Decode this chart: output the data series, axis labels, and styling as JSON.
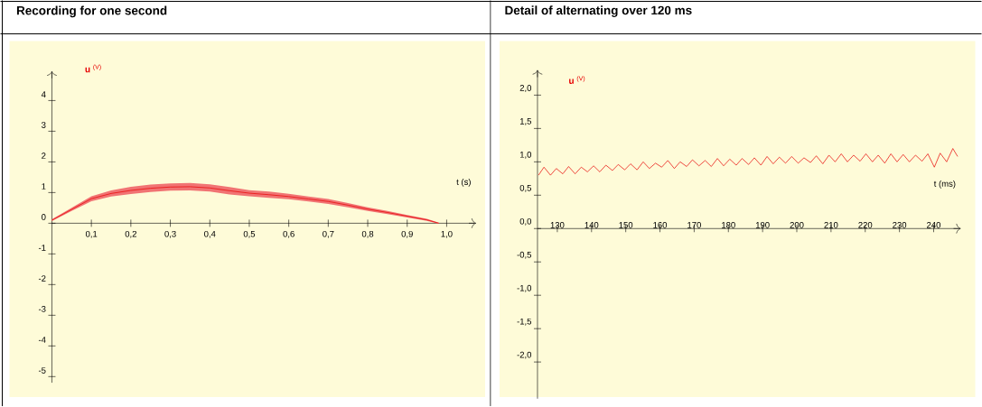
{
  "chart_data": [
    {
      "type": "line",
      "title": "Recording for one second",
      "xlabel": "t (s)",
      "ylabel": "**u** $^{(V)}$",
      "xlim": [
        0,
        1.07
      ],
      "ylim": [
        -5.2,
        4.9
      ],
      "xticks": [
        {
          "value": 0.1,
          "label": "0,1"
        },
        {
          "value": 0.2,
          "label": "0,2"
        },
        {
          "value": 0.3,
          "label": "0,3"
        },
        {
          "value": 0.4,
          "label": "0,4"
        },
        {
          "value": 0.5,
          "label": "0,5"
        },
        {
          "value": 0.6,
          "label": "0,6"
        },
        {
          "value": 0.7,
          "label": "0,7"
        },
        {
          "value": 0.8,
          "label": "0,8"
        },
        {
          "value": 0.9,
          "label": "0,9"
        },
        {
          "value": 1.0,
          "label": "1,0"
        }
      ],
      "yticks": [
        -5,
        -4,
        -3,
        -2,
        -1,
        0,
        1,
        2,
        3,
        4
      ],
      "x": [
        0,
        0.05,
        0.1,
        0.15,
        0.2,
        0.25,
        0.3,
        0.35,
        0.4,
        0.45,
        0.5,
        0.55,
        0.6,
        0.65,
        0.7,
        0.75,
        0.8,
        0.85,
        0.9,
        0.95,
        0.98
      ],
      "series": [
        {
          "color": "#e60000",
          "values": [
            0.1,
            0.45,
            0.8,
            0.97,
            1.07,
            1.14,
            1.18,
            1.19,
            1.15,
            1.06,
            0.98,
            0.93,
            0.87,
            0.79,
            0.71,
            0.59,
            0.46,
            0.35,
            0.23,
            0.11,
            0.0
          ],
          "upper": [
            0.13,
            0.5,
            0.88,
            1.07,
            1.19,
            1.26,
            1.3,
            1.31,
            1.27,
            1.18,
            1.08,
            1.03,
            0.96,
            0.87,
            0.79,
            0.66,
            0.52,
            0.4,
            0.27,
            0.14,
            0.02
          ],
          "lower": [
            0.07,
            0.4,
            0.72,
            0.87,
            0.95,
            1.02,
            1.06,
            1.07,
            1.03,
            0.94,
            0.88,
            0.83,
            0.78,
            0.71,
            0.63,
            0.52,
            0.4,
            0.3,
            0.19,
            0.08,
            -0.02
          ]
        }
      ]
    },
    {
      "type": "line",
      "title": "Detail of alternating over 120 ms",
      "xlabel": "t (ms)",
      "ylabel": "**u** $^{(V)}$",
      "xlim": [
        124.2,
        247.4
      ],
      "ylim": [
        -2.55,
        2.35
      ],
      "xticks": [
        130,
        140,
        150,
        160,
        170,
        180,
        190,
        200,
        210,
        220,
        230,
        240
      ],
      "yticks": [
        {
          "value": -2,
          "label": "-2,0"
        },
        {
          "value": -1.5,
          "label": "-1,5"
        },
        {
          "value": -1,
          "label": "-1,0"
        },
        {
          "value": -0.5,
          "label": "-0,5"
        },
        {
          "value": 0,
          "label": "0,0"
        },
        {
          "value": 0.5,
          "label": "0,5"
        },
        {
          "value": 1,
          "label": "1,0"
        },
        {
          "value": 1.5,
          "label": "1,5"
        },
        {
          "value": 2,
          "label": "2,0"
        }
      ],
      "x": [
        124.5,
        126.1,
        128.0,
        129.7,
        131.6,
        133.3,
        135.2,
        137.0,
        138.8,
        140.6,
        142.4,
        144.2,
        146.1,
        147.8,
        149.7,
        151.4,
        153.3,
        155.1,
        156.9,
        158.7,
        160.5,
        162.3,
        164.2,
        165.9,
        167.8,
        169.5,
        171.4,
        173.2,
        175.0,
        176.8,
        178.6,
        180.4,
        182.3,
        184.0,
        185.9,
        187.6,
        189.5,
        191.3,
        193.1,
        194.9,
        196.7,
        198.5,
        200.4,
        202.1,
        204.0,
        205.7,
        207.6,
        209.4,
        211.2,
        213.0,
        214.8,
        216.6,
        218.5,
        220.2,
        222.1,
        223.8,
        225.7,
        227.5,
        229.3,
        231.1,
        232.9,
        234.7,
        236.6,
        238.3,
        240.2,
        241.9,
        243.8,
        245.6,
        247.0
      ],
      "series": [
        {
          "color": "#e60000",
          "values": [
            0.8,
            0.92,
            0.8,
            0.9,
            0.82,
            0.93,
            0.82,
            0.92,
            0.85,
            0.94,
            0.85,
            0.95,
            0.87,
            0.96,
            0.88,
            0.97,
            0.88,
            1.0,
            0.9,
            0.98,
            0.92,
            1.02,
            0.9,
            1.0,
            0.93,
            1.03,
            0.94,
            1.02,
            0.93,
            1.05,
            0.94,
            1.04,
            0.95,
            1.05,
            0.96,
            1.06,
            0.95,
            1.08,
            0.97,
            1.07,
            0.98,
            1.08,
            0.98,
            1.06,
            0.99,
            1.09,
            0.97,
            1.1,
            1.0,
            1.12,
            1.0,
            1.1,
            1.01,
            1.12,
            1.0,
            1.1,
            0.98,
            1.12,
            1.0,
            1.11,
            1.0,
            1.1,
            1.01,
            1.12,
            0.92,
            1.13,
            1.0,
            1.2,
            1.08
          ]
        }
      ]
    }
  ]
}
